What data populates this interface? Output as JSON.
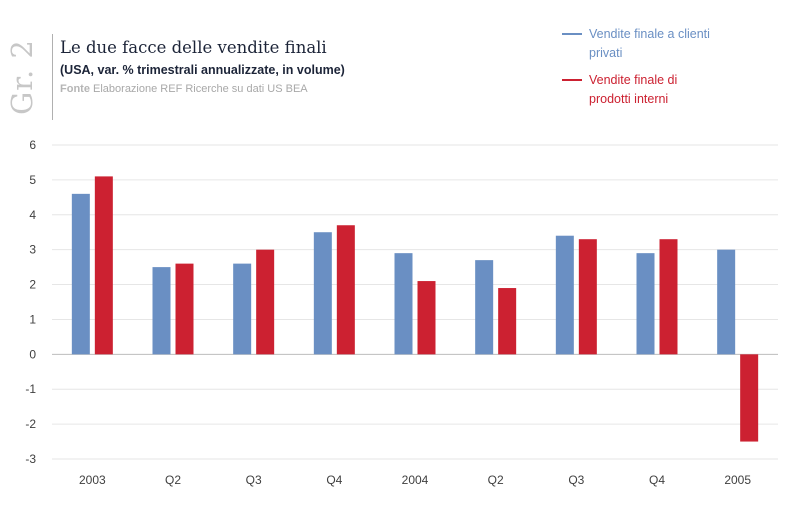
{
  "figure": {
    "tag": "Gr. 2",
    "title": "Le due facce delle vendite finali",
    "subtitle": "(USA, var. % trimestrali annualizzate, in volume)",
    "source_label": "Fonte",
    "source_text": "Elaborazione REF Ricerche su dati US BEA"
  },
  "chart_data": {
    "type": "bar",
    "categories": [
      "2003",
      "Q2",
      "Q3",
      "Q4",
      "2004",
      "Q2",
      "Q3",
      "Q4",
      "2005"
    ],
    "series": [
      {
        "name": "Vendite finale a clienti privati",
        "color": "#6a8fc3",
        "values": [
          4.6,
          2.5,
          2.6,
          3.5,
          2.9,
          2.7,
          3.4,
          2.9,
          3.0
        ]
      },
      {
        "name": "Vendite finale di prodotti interni",
        "color": "#cc2131",
        "values": [
          5.1,
          2.6,
          3.0,
          3.7,
          2.1,
          1.9,
          3.3,
          3.3,
          -2.5
        ]
      }
    ],
    "ylim": [
      -3,
      6
    ],
    "yticks": [
      6,
      5,
      4,
      3,
      2,
      1,
      0,
      -1,
      -2,
      -3
    ],
    "grid": true,
    "legend_position": "top-right"
  }
}
